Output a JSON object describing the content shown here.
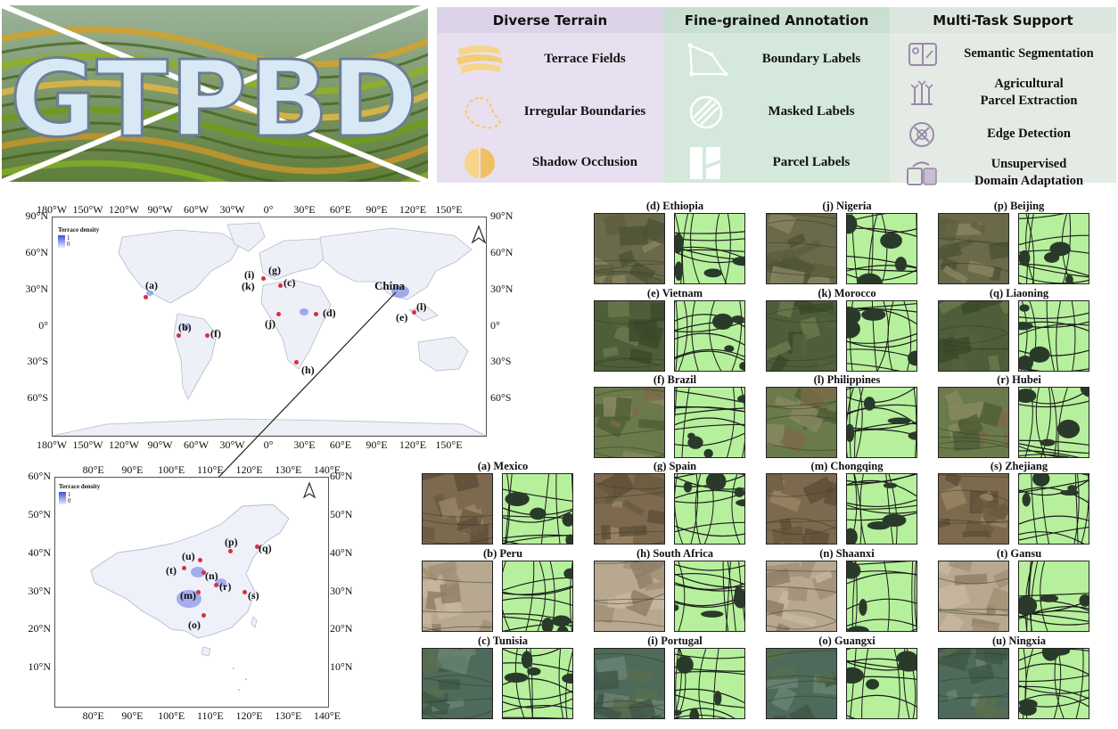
{
  "banner": {
    "logo": "GTPBD"
  },
  "panels": [
    {
      "title": "Diverse Terrain",
      "items": [
        {
          "label": "Terrace Fields",
          "icon": "terrace-icon"
        },
        {
          "label": "Irregular Boundaries",
          "icon": "irregular-boundary-icon"
        },
        {
          "label": "Shadow Occlusion",
          "icon": "shadow-occlusion-icon"
        }
      ]
    },
    {
      "title": "Fine-grained Annotation",
      "items": [
        {
          "label": "Boundary Labels",
          "icon": "boundary-label-icon"
        },
        {
          "label": "Masked Labels",
          "icon": "masked-label-icon"
        },
        {
          "label": "Parcel Labels",
          "icon": "parcel-label-icon"
        }
      ]
    },
    {
      "title": "Multi-Task Support",
      "items": [
        {
          "label": "Semantic Segmentation",
          "icon": "segmentation-icon"
        },
        {
          "label": "Agricultural\nParcel Extraction",
          "icon": "parcel-extraction-icon"
        },
        {
          "label": "Edge Detection",
          "icon": "edge-detection-icon"
        },
        {
          "label": "Unsupervised\nDomain Adaptation",
          "icon": "domain-adaptation-icon"
        }
      ]
    }
  ],
  "world_map": {
    "lon_ticks": [
      "180°W",
      "150°W",
      "120°W",
      "90°W",
      "60°W",
      "30°W",
      "0°",
      "30°E",
      "60°E",
      "90°E",
      "120°E",
      "150°E"
    ],
    "lat_ticks": [
      "90°N",
      "60°N",
      "30°N",
      "0°",
      "30°S",
      "60°S"
    ],
    "legend_title": "Terrace density",
    "legend_high": "1",
    "legend_low": "0",
    "highlight_label": "China",
    "sites": [
      "(a)",
      "(b)",
      "(f)",
      "(i)",
      "(k)",
      "(g)",
      "(c)",
      "(j)",
      "(d)",
      "(h)",
      "(e)",
      "(l)"
    ]
  },
  "china_map": {
    "lon_ticks": [
      "80°E",
      "90°E",
      "100°E",
      "110°E",
      "120°E",
      "130°E",
      "140°E"
    ],
    "lat_ticks": [
      "60°N",
      "50°N",
      "40°N",
      "30°N",
      "20°N",
      "10°N"
    ],
    "legend_title": "Terrace density",
    "legend_high": "1",
    "legend_low": "0",
    "sites": [
      "(p)",
      "(q)",
      "(u)",
      "(t)",
      "(n)",
      "(r)",
      "(m)",
      "(s)",
      "(o)"
    ]
  },
  "samples": [
    "(a) Mexico",
    "(b) Peru",
    "(c) Tunisia",
    "(d) Ethiopia",
    "(e) Vietnam",
    "(f) Brazil",
    "(g) Spain",
    "(h) South Africa",
    "(i) Portugal",
    "(j) Nigeria",
    "(k) Morocco",
    "(l) Philippines",
    "(m) Chongqing",
    "(n) Shaanxi",
    "(o) Guangxi",
    "(p) Beijing",
    "(q) Liaoning",
    "(r) Hubei",
    "(s) Zhejiang",
    "(t) Gansu",
    "(u) Ningxia"
  ],
  "colors": {
    "label_fill": "#b6f09c",
    "terrace_accent": "#f6d58a",
    "pin": "#d7303f"
  }
}
